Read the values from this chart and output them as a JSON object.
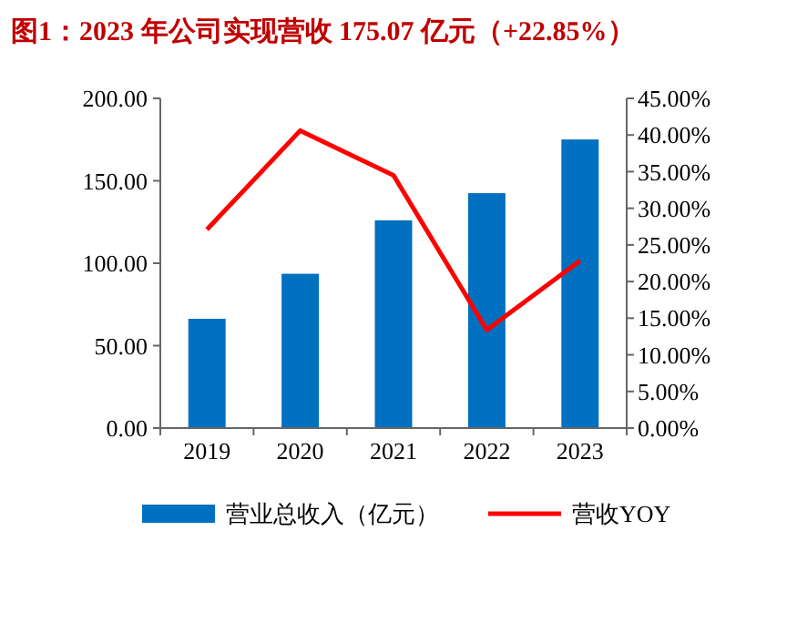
{
  "chart_data": {
    "type": "bar",
    "title": "图1：2023 年公司实现营收 175.07 亿元（+22.85%）",
    "categories": [
      "2019",
      "2020",
      "2021",
      "2022",
      "2023"
    ],
    "series": [
      {
        "name": "营业总收入（亿元）",
        "color": "#0070c0",
        "values": [
          66.3,
          93.6,
          126,
          142.5,
          175.07
        ]
      },
      {
        "name": "营收YOY",
        "type": "line",
        "axis": "y2",
        "color": "#ff0000",
        "values": [
          27.1,
          40.6,
          34.5,
          13.4,
          22.85
        ]
      }
    ],
    "ylim": [
      0,
      200
    ],
    "yticks": [
      {
        "value": 0,
        "label": "0.00"
      },
      {
        "value": 50,
        "label": "50.00"
      },
      {
        "value": 100,
        "label": "100.00"
      },
      {
        "value": 150,
        "label": "150.00"
      },
      {
        "value": 200,
        "label": "200.00"
      }
    ],
    "y2lim": [
      0,
      45
    ],
    "y2ticks": [
      {
        "value": 0,
        "label": "0.00%"
      },
      {
        "value": 5,
        "label": "5.00%"
      },
      {
        "value": 10,
        "label": "10.00%"
      },
      {
        "value": 15,
        "label": "15.00%"
      },
      {
        "value": 20,
        "label": "20.00%"
      },
      {
        "value": 25,
        "label": "25.00%"
      },
      {
        "value": 30,
        "label": "30.00%"
      },
      {
        "value": 35,
        "label": "35.00%"
      },
      {
        "value": 40,
        "label": "40.00%"
      },
      {
        "value": 45,
        "label": "45.00%"
      }
    ],
    "legend": "bottom",
    "grid": false,
    "marker": "none"
  }
}
